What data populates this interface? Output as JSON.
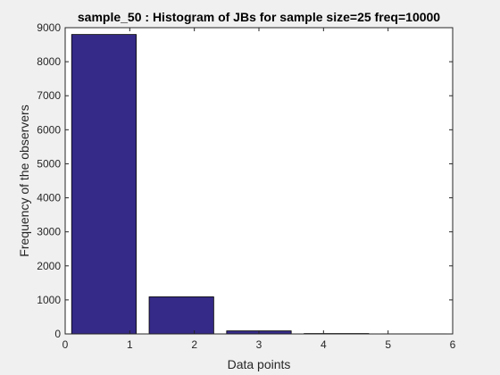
{
  "chart_data": {
    "type": "bar",
    "title": "sample_50 : Histogram of JBs for sample size=25 freq=10000",
    "xlabel": "Data points",
    "ylabel": "Frequency of the observers",
    "xlim": [
      0,
      6
    ],
    "ylim": [
      0,
      9000
    ],
    "xticks": [
      0,
      1,
      2,
      3,
      4,
      5,
      6
    ],
    "yticks": [
      0,
      1000,
      2000,
      3000,
      4000,
      5000,
      6000,
      7000,
      8000,
      9000
    ],
    "bins": [
      {
        "x_start": 0.1,
        "x_end": 1.1,
        "value": 8800
      },
      {
        "x_start": 1.3,
        "x_end": 2.3,
        "value": 1090
      },
      {
        "x_start": 2.5,
        "x_end": 3.5,
        "value": 90
      },
      {
        "x_start": 3.7,
        "x_end": 4.7,
        "value": 12
      },
      {
        "x_start": 4.9,
        "x_end": 5.9,
        "value": 3
      }
    ],
    "bar_color": "#352a87",
    "bar_edge_color": "#000000",
    "grid": false,
    "legend": "none"
  }
}
